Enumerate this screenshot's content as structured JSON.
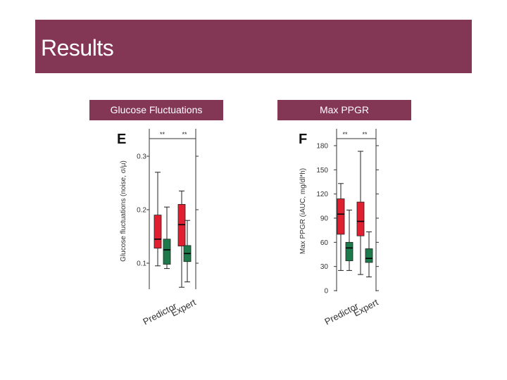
{
  "slide": {
    "title": "Results",
    "left_header": "Glucose Fluctuations",
    "right_header": "Max PPGR",
    "banner_color": "#843655"
  },
  "chart_data": [
    {
      "type": "box",
      "panel": "E",
      "ylabel": "Glucose fluctuations (noise, σ/μ)",
      "yticks": [
        "0.1",
        "0.2",
        "0.3"
      ],
      "ylim": [
        0.05,
        0.33
      ],
      "categories": [
        "Predictor",
        "Expert"
      ],
      "significance": [
        "**",
        "**"
      ],
      "groups": [
        {
          "boxes": [
            {
              "series": "Predictor",
              "color": "#e02030",
              "whislo": 0.095,
              "q1": 0.128,
              "med": 0.145,
              "q3": 0.19,
              "whishi": 0.27
            },
            {
              "series": "Expert",
              "color": "#1d7a4a",
              "whislo": 0.09,
              "q1": 0.098,
              "med": 0.125,
              "q3": 0.145,
              "whishi": 0.205
            }
          ]
        },
        {
          "boxes": [
            {
              "series": "Predictor",
              "color": "#e02030",
              "whislo": 0.055,
              "q1": 0.132,
              "med": 0.172,
              "q3": 0.21,
              "whishi": 0.235
            },
            {
              "series": "Expert",
              "color": "#1d7a4a",
              "whislo": 0.065,
              "q1": 0.103,
              "med": 0.118,
              "q3": 0.133,
              "whishi": 0.18
            }
          ]
        }
      ]
    },
    {
      "type": "box",
      "panel": "F",
      "ylabel": "Max PPGR (iAUC, mg/dl*h)",
      "yticks": [
        "0",
        "30",
        "60",
        "90",
        "120",
        "150",
        "180"
      ],
      "ylim": [
        0,
        190
      ],
      "categories": [
        "Predictor",
        "Expert"
      ],
      "significance": [
        "**",
        "**"
      ],
      "groups": [
        {
          "boxes": [
            {
              "series": "Predictor",
              "color": "#e02030",
              "whislo": 25,
              "q1": 70,
              "med": 95,
              "q3": 114,
              "whishi": 133
            },
            {
              "series": "Expert",
              "color": "#1d7a4a",
              "whislo": 25,
              "q1": 37,
              "med": 53,
              "q3": 60,
              "whishi": 100
            }
          ]
        },
        {
          "boxes": [
            {
              "series": "Predictor",
              "color": "#e02030",
              "whislo": 20,
              "q1": 68,
              "med": 86,
              "q3": 110,
              "whishi": 173
            },
            {
              "series": "Expert",
              "color": "#1d7a4a",
              "whislo": 17,
              "q1": 35,
              "med": 40,
              "q3": 52,
              "whishi": 73
            }
          ]
        }
      ]
    }
  ]
}
